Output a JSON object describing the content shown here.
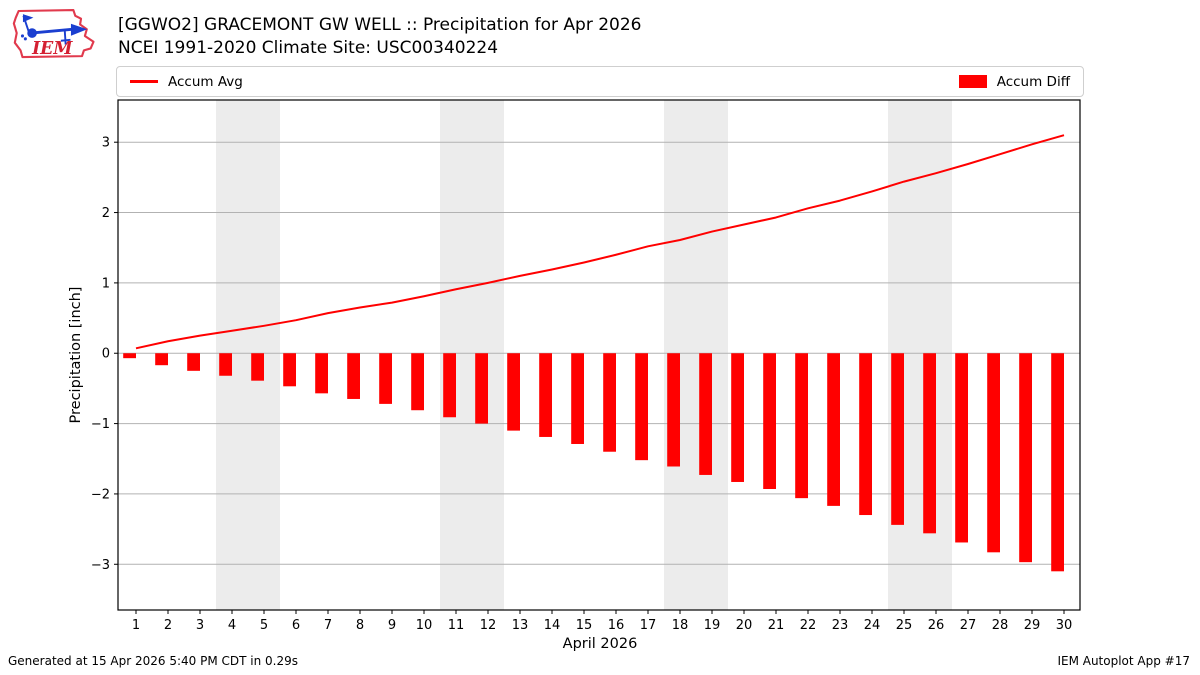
{
  "header": {
    "logo_text": "IEM",
    "title_line1": "[GGWO2] GRACEMONT GW WELL :: Precipitation for Apr 2026",
    "title_line2": "NCEI 1991-2020 Climate Site: USC00340224"
  },
  "legend": {
    "line_label": "Accum Avg",
    "bar_label": "Accum Diff"
  },
  "footer": {
    "left": "Generated at 15 Apr 2026 5:40 PM CDT in 0.29s",
    "right": "IEM Autoplot App #17"
  },
  "chart_data": {
    "type": "line+bar",
    "title": "[GGWO2] GRACEMONT GW WELL :: Precipitation for Apr 2026",
    "subtitle": "NCEI 1991-2020 Climate Site: USC00340224",
    "xlabel": "April 2026",
    "ylabel": "Precipitation [inch]",
    "x": [
      1,
      2,
      3,
      4,
      5,
      6,
      7,
      8,
      9,
      10,
      11,
      12,
      13,
      14,
      15,
      16,
      17,
      18,
      19,
      20,
      21,
      22,
      23,
      24,
      25,
      26,
      27,
      28,
      29,
      30
    ],
    "series": [
      {
        "name": "Accum Avg",
        "type": "line",
        "color": "#ff0000",
        "values": [
          0.07,
          0.17,
          0.25,
          0.32,
          0.39,
          0.47,
          0.57,
          0.65,
          0.72,
          0.81,
          0.91,
          1.0,
          1.1,
          1.19,
          1.29,
          1.4,
          1.52,
          1.61,
          1.73,
          1.83,
          1.93,
          2.06,
          2.17,
          2.3,
          2.44,
          2.56,
          2.69,
          2.83,
          2.97,
          3.1
        ]
      },
      {
        "name": "Accum Diff",
        "type": "bar",
        "color": "#ff0000",
        "values": [
          -0.07,
          -0.17,
          -0.25,
          -0.32,
          -0.39,
          -0.47,
          -0.57,
          -0.65,
          -0.72,
          -0.81,
          -0.91,
          -1.0,
          -1.1,
          -1.19,
          -1.29,
          -1.4,
          -1.52,
          -1.61,
          -1.73,
          -1.83,
          -1.93,
          -2.06,
          -2.17,
          -2.3,
          -2.44,
          -2.56,
          -2.69,
          -2.83,
          -2.97,
          -3.1
        ]
      }
    ],
    "xlim": [
      0.4375,
      30.5
    ],
    "ylim": [
      -3.65,
      3.6
    ],
    "yticks": [
      {
        "value": -3,
        "label": "−3"
      },
      {
        "value": -2,
        "label": "−2"
      },
      {
        "value": -1,
        "label": "−1"
      },
      {
        "value": 0,
        "label": "0"
      },
      {
        "value": 1,
        "label": "1"
      },
      {
        "value": 2,
        "label": "2"
      },
      {
        "value": 3,
        "label": "3"
      }
    ],
    "grid": true,
    "grid_color": "#b2b2b2",
    "weekend_bands": [
      [
        3.5,
        5.5
      ],
      [
        10.5,
        12.5
      ],
      [
        17.5,
        19.5
      ],
      [
        24.5,
        26.5
      ]
    ],
    "band_color": "#ececec",
    "bar_width_days": 0.4,
    "bar_align": "right-edge",
    "legend_position": "top",
    "spine_color": "#000000"
  }
}
